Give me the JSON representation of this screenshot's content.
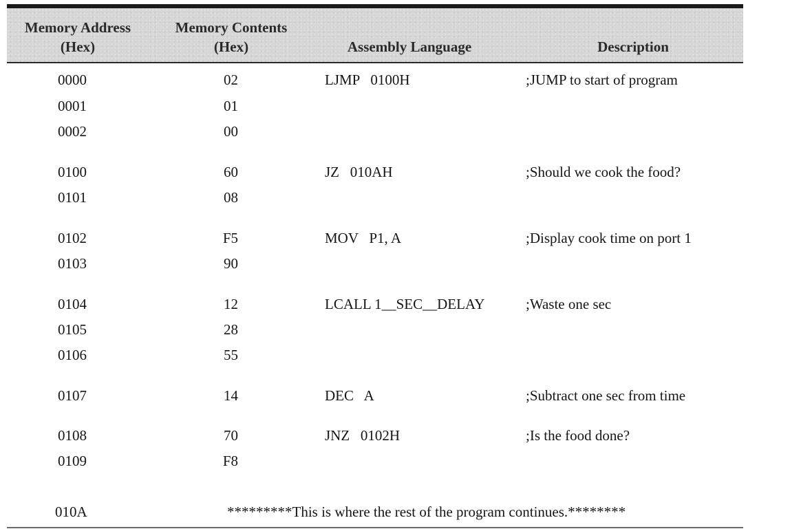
{
  "header": {
    "col1_line1": "Memory Address",
    "col1_line2": "(Hex)",
    "col2_line1": "Memory Contents",
    "col2_line2": "(Hex)",
    "col3": "Assembly Language",
    "col4": "Description"
  },
  "rows": [
    {
      "addr": "0000",
      "contents": "02",
      "asm": "LJMP   0100H",
      "desc": ";JUMP to start of program"
    },
    {
      "addr": "0001",
      "contents": "01",
      "asm": "",
      "desc": ""
    },
    {
      "addr": "0002",
      "contents": "00",
      "asm": "",
      "desc": ""
    },
    {
      "addr": "0100",
      "contents": "60",
      "asm": "JZ   010AH",
      "desc": ";Should we cook the food?"
    },
    {
      "addr": "0101",
      "contents": "08",
      "asm": "",
      "desc": ""
    },
    {
      "addr": "0102",
      "contents": "F5",
      "asm": "MOV   P1, A",
      "desc": ";Display cook time on port 1"
    },
    {
      "addr": "0103",
      "contents": "90",
      "asm": "",
      "desc": ""
    },
    {
      "addr": "0104",
      "contents": "12",
      "asm": "LCALL 1__SEC__DELAY",
      "desc": ";Waste one sec"
    },
    {
      "addr": "0105",
      "contents": "28",
      "asm": "",
      "desc": ""
    },
    {
      "addr": "0106",
      "contents": "55",
      "asm": "",
      "desc": ""
    },
    {
      "addr": "0107",
      "contents": "14",
      "asm": "DEC   A",
      "desc": ";Subtract one sec from time"
    },
    {
      "addr": "0108",
      "contents": "70",
      "asm": "JNZ   0102H",
      "desc": ";Is the food done?"
    },
    {
      "addr": "0109",
      "contents": "F8",
      "asm": "",
      "desc": ""
    }
  ],
  "footer": {
    "addr": "010A",
    "note": "*********This is where the rest of the program continues.********"
  }
}
